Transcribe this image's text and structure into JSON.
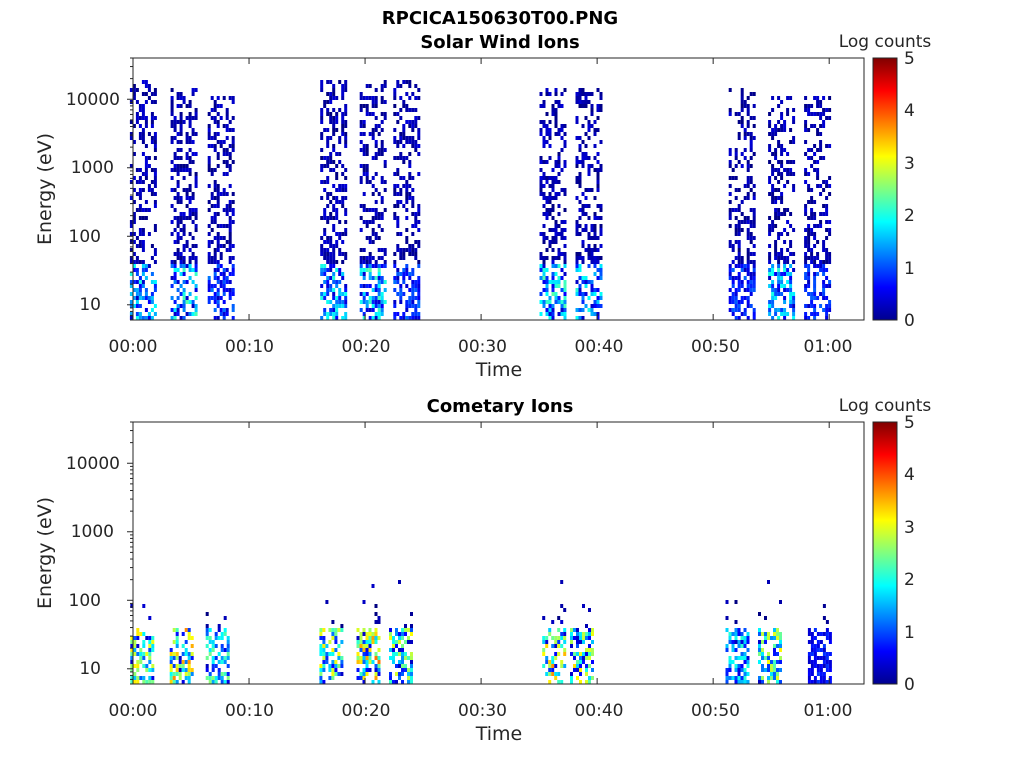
{
  "figure_title": "RPCICA150630T00.PNG",
  "chart_data": [
    {
      "type": "heatmap",
      "title": "Solar Wind Ions",
      "xlabel": "Time",
      "ylabel": "Energy (eV)",
      "y_scale": "log",
      "ylim": [
        6,
        40000
      ],
      "x_ticks": [
        "00:00",
        "00:10",
        "00:20",
        "00:30",
        "00:40",
        "00:50",
        "01:00"
      ],
      "y_ticks": [
        "10",
        "100",
        "1000",
        "10000"
      ],
      "colorbar": {
        "label": "Log counts",
        "range": [
          0,
          5
        ],
        "ticks": [
          "0",
          "1",
          "2",
          "3",
          "4",
          "5"
        ]
      },
      "bursts": [
        {
          "time_min": 0.9,
          "energy_range_eV": [
            6,
            20000
          ],
          "peak_log_counts": 1.8
        },
        {
          "time_min": 4.4,
          "energy_range_eV": [
            6,
            15000
          ],
          "peak_log_counts": 2.0
        },
        {
          "time_min": 7.6,
          "energy_range_eV": [
            6,
            12000
          ],
          "peak_log_counts": 0.9
        },
        {
          "time_min": 17.3,
          "energy_range_eV": [
            6,
            20000
          ],
          "peak_log_counts": 1.8
        },
        {
          "time_min": 20.7,
          "energy_range_eV": [
            6,
            20000
          ],
          "peak_log_counts": 2.0
        },
        {
          "time_min": 23.6,
          "energy_range_eV": [
            6,
            20000
          ],
          "peak_log_counts": 0.9
        },
        {
          "time_min": 36.2,
          "energy_range_eV": [
            6,
            15000
          ],
          "peak_log_counts": 2.0
        },
        {
          "time_min": 39.3,
          "energy_range_eV": [
            6,
            15000
          ],
          "peak_log_counts": 1.8
        },
        {
          "time_min": 52.5,
          "energy_range_eV": [
            6,
            15000
          ],
          "peak_log_counts": 0.8
        },
        {
          "time_min": 55.9,
          "energy_range_eV": [
            6,
            12000
          ],
          "peak_log_counts": 1.8
        },
        {
          "time_min": 59.0,
          "energy_range_eV": [
            6,
            12000
          ],
          "peak_log_counts": 0.8
        }
      ]
    },
    {
      "type": "heatmap",
      "title": "Cometary Ions",
      "xlabel": "Time",
      "ylabel": "Energy (eV)",
      "y_scale": "log",
      "ylim": [
        6,
        40000
      ],
      "x_ticks": [
        "00:00",
        "00:10",
        "00:20",
        "00:30",
        "00:40",
        "00:50",
        "01:00"
      ],
      "y_ticks": [
        "10",
        "100",
        "1000",
        "10000"
      ],
      "colorbar": {
        "label": "Log counts",
        "range": [
          0,
          5
        ],
        "ticks": [
          "0",
          "1",
          "2",
          "3",
          "4",
          "5"
        ]
      },
      "bursts": [
        {
          "time_min": 0.8,
          "energy_range_eV": [
            6,
            300
          ],
          "peak_log_counts": 3.0
        },
        {
          "time_min": 4.2,
          "energy_range_eV": [
            6,
            300
          ],
          "peak_log_counts": 3.4
        },
        {
          "time_min": 7.3,
          "energy_range_eV": [
            6,
            200
          ],
          "peak_log_counts": 2.3
        },
        {
          "time_min": 17.1,
          "energy_range_eV": [
            6,
            200
          ],
          "peak_log_counts": 3.0
        },
        {
          "time_min": 20.3,
          "energy_range_eV": [
            6,
            200
          ],
          "peak_log_counts": 3.5
        },
        {
          "time_min": 23.1,
          "energy_range_eV": [
            6,
            200
          ],
          "peak_log_counts": 2.8
        },
        {
          "time_min": 36.3,
          "energy_range_eV": [
            6,
            200
          ],
          "peak_log_counts": 3.4
        },
        {
          "time_min": 38.7,
          "energy_range_eV": [
            6,
            200
          ],
          "peak_log_counts": 3.0
        },
        {
          "time_min": 52.1,
          "energy_range_eV": [
            6,
            200
          ],
          "peak_log_counts": 1.9
        },
        {
          "time_min": 54.9,
          "energy_range_eV": [
            6,
            200
          ],
          "peak_log_counts": 2.9
        },
        {
          "time_min": 59.2,
          "energy_range_eV": [
            6,
            150
          ],
          "peak_log_counts": 0.6
        }
      ]
    }
  ]
}
